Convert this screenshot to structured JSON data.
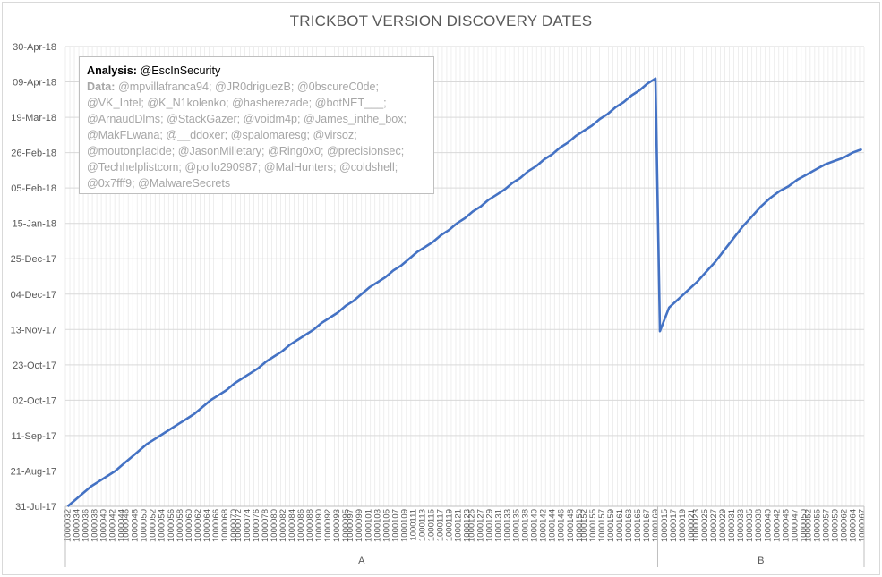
{
  "chart_data": {
    "type": "line",
    "title": "TRICKBOT VERSION DISCOVERY DATES",
    "y_tick_labels": [
      "31-Jul-17",
      "21-Aug-17",
      "11-Sep-17",
      "02-Oct-17",
      "23-Oct-17",
      "13-Nov-17",
      "04-Dec-17",
      "25-Dec-17",
      "15-Jan-18",
      "05-Feb-18",
      "26-Feb-18",
      "19-Mar-18",
      "09-Apr-18",
      "30-Apr-18"
    ],
    "ylim": [
      "31-Jul-17",
      "30-Apr-18"
    ],
    "grid": true,
    "group_labels": [
      "A",
      "B"
    ],
    "group_sizes": [
      132,
      46
    ],
    "x_tick_labels": [
      "1000032",
      "1000034",
      "1000036",
      "1000038",
      "1000040",
      "1000042",
      "1000044",
      "1000046",
      "1000048",
      "1000050",
      "1000052",
      "1000054",
      "1000056",
      "1000058",
      "1000060",
      "1000062",
      "1000064",
      "1000066",
      "1000068",
      "1000070",
      "1000072",
      "1000074",
      "1000076",
      "1000078",
      "1000080",
      "1000082",
      "1000084",
      "1000086",
      "1000088",
      "1000090",
      "1000092",
      "1000093",
      "1000095",
      "1000097",
      "1000099",
      "1000101",
      "1000103",
      "1000105",
      "1000107",
      "1000109",
      "1000111",
      "1000113",
      "1000115",
      "1000117",
      "1000119",
      "1000121",
      "1000123",
      "1000125",
      "1000127",
      "1000129",
      "1000131",
      "1000133",
      "1000135",
      "1000138",
      "1000140",
      "1000142",
      "1000144",
      "1000146",
      "1000148",
      "1000150",
      "1000152",
      "1000155",
      "1000157",
      "1000159",
      "1000161",
      "1000163",
      "1000165",
      "1000167",
      "1000169",
      "1000015",
      "1000017",
      "1000019",
      "1000021",
      "1000023",
      "1000025",
      "1000027",
      "1000029",
      "1000031",
      "1000033",
      "1000035",
      "1000038",
      "1000040",
      "1000042",
      "1000045",
      "1000047",
      "1000050",
      "1000052",
      "1000055",
      "1000057",
      "1000059",
      "1000062",
      "1000064",
      "1000067"
    ],
    "series": [
      {
        "color": "#4472c4",
        "values_A": [
          "2017-07-31",
          "2017-08-04",
          "2017-08-08",
          "2017-08-12",
          "2017-08-15",
          "2017-08-18",
          "2017-08-21",
          "2017-08-25",
          "2017-08-29",
          "2017-09-02",
          "2017-09-06",
          "2017-09-09",
          "2017-09-12",
          "2017-09-15",
          "2017-09-18",
          "2017-09-21",
          "2017-09-24",
          "2017-09-28",
          "2017-10-02",
          "2017-10-05",
          "2017-10-08",
          "2017-10-12",
          "2017-10-15",
          "2017-10-18",
          "2017-10-21",
          "2017-10-25",
          "2017-10-28",
          "2017-10-31",
          "2017-11-04",
          "2017-11-07",
          "2017-11-10",
          "2017-11-13",
          "2017-11-17",
          "2017-11-20",
          "2017-11-23",
          "2017-11-27",
          "2017-11-30",
          "2017-12-04",
          "2017-12-08",
          "2017-12-11",
          "2017-12-14",
          "2017-12-18",
          "2017-12-21",
          "2017-12-25",
          "2017-12-29",
          "2018-01-01",
          "2018-01-04",
          "2018-01-08",
          "2018-01-11",
          "2018-01-15",
          "2018-01-18",
          "2018-01-22",
          "2018-01-25",
          "2018-01-29",
          "2018-02-01",
          "2018-02-04",
          "2018-02-08",
          "2018-02-11",
          "2018-02-15",
          "2018-02-18",
          "2018-02-22",
          "2018-02-25",
          "2018-03-01",
          "2018-03-04",
          "2018-03-08",
          "2018-03-11",
          "2018-03-14",
          "2018-03-18",
          "2018-03-21",
          "2018-03-25",
          "2018-03-28",
          "2018-04-01",
          "2018-04-04",
          "2018-04-08",
          "2018-04-11"
        ],
        "values_B": [
          "2017-11-12",
          "2017-11-26",
          "2017-12-01",
          "2017-12-06",
          "2017-12-11",
          "2017-12-17",
          "2017-12-23",
          "2017-12-30",
          "2018-01-06",
          "2018-01-13",
          "2018-01-19",
          "2018-01-25",
          "2018-01-30",
          "2018-02-03",
          "2018-02-06",
          "2018-02-10",
          "2018-02-13",
          "2018-02-16",
          "2018-02-19",
          "2018-02-21",
          "2018-02-23",
          "2018-02-26",
          "2018-02-28"
        ]
      }
    ]
  },
  "annotation": {
    "analysis_label": "Analysis:",
    "analysis_value": " @EscInSecurity",
    "data_label": "Data:",
    "data_value": " @mpvillafranca94; @JR0driguezB; @0bscureC0de; @VK_Intel; @K_N1kolenko; @hasherezade; @botNET___; @ArnaudDlms; @StackGazer; @voidm4p; @James_inthe_box; @MakFLwana; @__ddoxer; @spalomaresg; @virsoz; @moutonplacide; @JasonMilletary; @Ring0x0; @precisionsec; @Techhelplistcom; @pollo290987; @MalHunters; @coldshell; @0x7fff9; @MalwareSecrets"
  }
}
